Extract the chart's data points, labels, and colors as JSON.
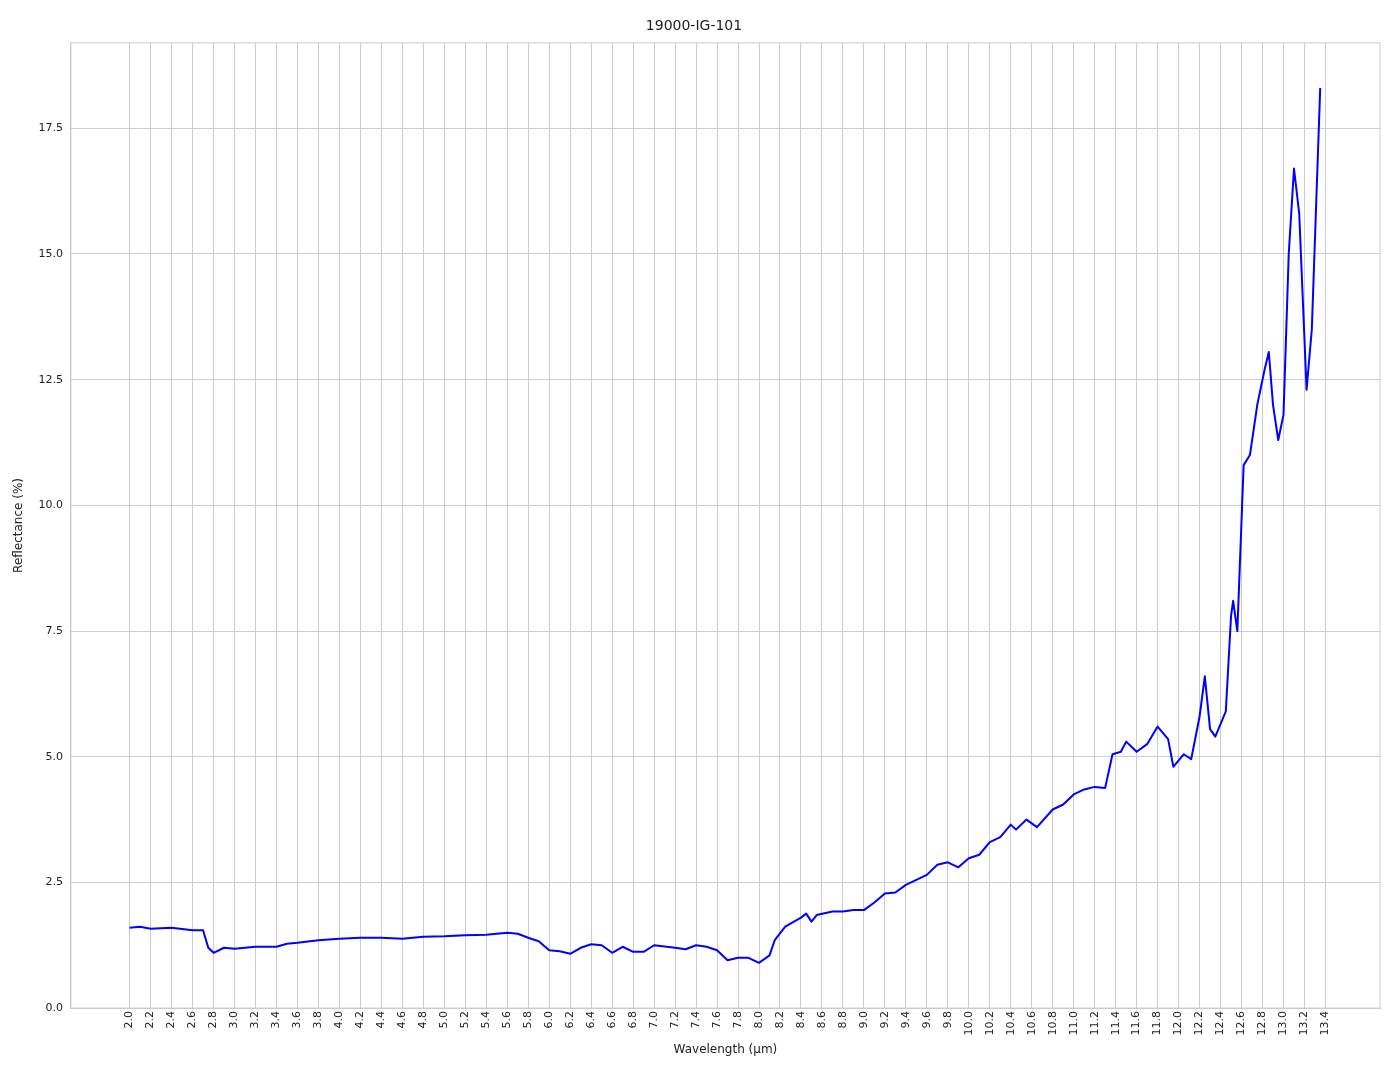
{
  "chart_data": {
    "type": "line",
    "title": "19000-IG-101",
    "xlabel": "Wavelength (µm)",
    "ylabel": "Reflectance (%)",
    "grid": true,
    "xlim": [
      1.44,
      13.92
    ],
    "ylim": [
      0,
      19.2
    ],
    "xticks": [
      {
        "value": 2,
        "label": "2.0"
      },
      2.2,
      2.4,
      2.6,
      2.8,
      {
        "value": 3,
        "label": "3.0"
      },
      3.2,
      3.4,
      3.6,
      3.8,
      {
        "value": 4,
        "label": "4.0"
      },
      4.2,
      4.4,
      4.6,
      4.8,
      {
        "value": 5,
        "label": "5.0"
      },
      5.2,
      5.4,
      5.6,
      5.8,
      {
        "value": 6,
        "label": "6.0"
      },
      6.2,
      6.4,
      6.6,
      6.8,
      {
        "value": 7,
        "label": "7.0"
      },
      7.2,
      7.4,
      7.6,
      7.8,
      {
        "value": 8,
        "label": "8.0"
      },
      8.2,
      8.4,
      8.6,
      8.8,
      {
        "value": 9,
        "label": "9.0"
      },
      9.2,
      9.4,
      9.6,
      9.8,
      {
        "value": 10,
        "label": "10.0"
      },
      10.2,
      10.4,
      10.6,
      10.8,
      {
        "value": 11,
        "label": "11.0"
      },
      11.2,
      11.4,
      11.6,
      11.8,
      {
        "value": 12,
        "label": "12.0"
      },
      12.2,
      12.4,
      12.6,
      12.8,
      {
        "value": 13,
        "label": "13.0"
      },
      13.2,
      13.4
    ],
    "yticks": [
      {
        "value": 0,
        "label": "0.0"
      },
      2.5,
      {
        "value": 5,
        "label": "5.0"
      },
      7.5,
      {
        "value": 10,
        "label": "10.0"
      },
      12.5,
      {
        "value": 15,
        "label": "15.0"
      },
      17.5
    ],
    "x": [
      2.0,
      2.1,
      2.2,
      2.4,
      2.6,
      2.7,
      2.75,
      2.8,
      2.9,
      3.0,
      3.2,
      3.4,
      3.5,
      3.6,
      3.8,
      4.0,
      4.2,
      4.4,
      4.6,
      4.8,
      5.0,
      5.2,
      5.4,
      5.6,
      5.7,
      5.8,
      5.9,
      6.0,
      6.1,
      6.2,
      6.3,
      6.4,
      6.5,
      6.6,
      6.7,
      6.8,
      6.9,
      7.0,
      7.2,
      7.3,
      7.4,
      7.5,
      7.6,
      7.7,
      7.8,
      7.9,
      8.0,
      8.1,
      8.15,
      8.25,
      8.4,
      8.45,
      8.5,
      8.55,
      8.7,
      8.8,
      8.9,
      9.0,
      9.1,
      9.2,
      9.3,
      9.4,
      9.5,
      9.6,
      9.7,
      9.8,
      9.9,
      10.0,
      10.1,
      10.2,
      10.3,
      10.4,
      10.45,
      10.55,
      10.65,
      10.8,
      10.9,
      11.0,
      11.1,
      11.2,
      11.3,
      11.37,
      11.45,
      11.5,
      11.6,
      11.7,
      11.8,
      11.9,
      11.95,
      12.05,
      12.12,
      12.2,
      12.25,
      12.3,
      12.35,
      12.45,
      12.5,
      12.52,
      12.56,
      12.62,
      12.68,
      12.75,
      12.82,
      12.86,
      12.9,
      12.95,
      13.0,
      13.05,
      13.1,
      13.15,
      13.22,
      13.27,
      13.35
    ],
    "series": [
      {
        "color": "#0000ff",
        "values": [
          1.6,
          1.62,
          1.58,
          1.6,
          1.55,
          1.55,
          1.2,
          1.1,
          1.2,
          1.18,
          1.22,
          1.22,
          1.28,
          1.3,
          1.35,
          1.38,
          1.4,
          1.4,
          1.38,
          1.42,
          1.43,
          1.45,
          1.46,
          1.5,
          1.48,
          1.4,
          1.33,
          1.15,
          1.13,
          1.08,
          1.2,
          1.27,
          1.25,
          1.1,
          1.22,
          1.12,
          1.12,
          1.25,
          1.2,
          1.17,
          1.25,
          1.22,
          1.15,
          0.95,
          1.0,
          1.0,
          0.9,
          1.05,
          1.35,
          1.62,
          1.8,
          1.88,
          1.72,
          1.85,
          1.92,
          1.92,
          1.95,
          1.95,
          2.1,
          2.28,
          2.3,
          2.45,
          2.55,
          2.65,
          2.85,
          2.9,
          2.8,
          2.98,
          3.05,
          3.3,
          3.4,
          3.65,
          3.55,
          3.75,
          3.6,
          3.95,
          4.05,
          4.25,
          4.35,
          4.4,
          4.38,
          5.05,
          5.1,
          5.3,
          5.1,
          5.25,
          5.6,
          5.35,
          4.8,
          5.05,
          4.95,
          5.8,
          6.6,
          5.55,
          5.4,
          5.9,
          7.8,
          8.1,
          7.5,
          10.8,
          11.0,
          12.0,
          12.7,
          13.05,
          12.0,
          11.3,
          11.8,
          15.0,
          16.7,
          15.8,
          12.3,
          13.5,
          18.3
        ]
      }
    ]
  }
}
